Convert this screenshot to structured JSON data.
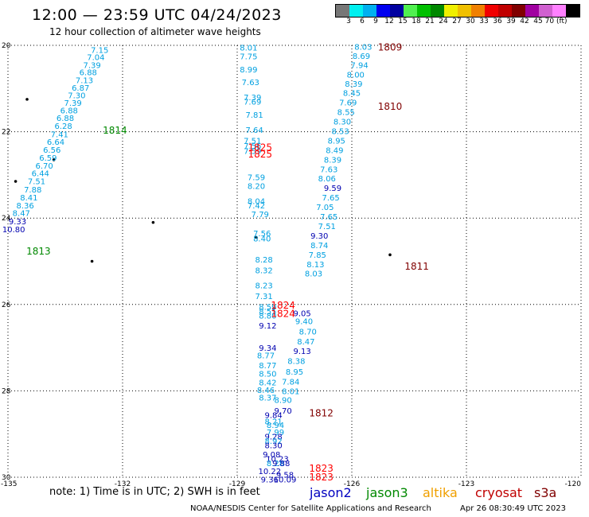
{
  "header": {
    "title": "12:00 — 23:59 UTC 04/24/2023",
    "subtitle": "12 hour collection of altimeter wave heights"
  },
  "colorbar": {
    "colors": [
      "#777777",
      "#00f0f0",
      "#00b0f0",
      "#0000f0",
      "#0000a0",
      "#50f050",
      "#00c000",
      "#008800",
      "#f0f000",
      "#f0c000",
      "#f08000",
      "#f00000",
      "#c00000",
      "#800000",
      "#a000a0",
      "#d060d0",
      "#ff80ff",
      "#000000"
    ],
    "labels": [
      "3",
      "6",
      "9",
      "12",
      "15",
      "18",
      "21",
      "24",
      "27",
      "30",
      "33",
      "36",
      "39",
      "42",
      "45",
      "70 (ft)"
    ]
  },
  "axes": {
    "x_ticks": [
      "-135",
      "-132",
      "-129",
      "-126",
      "-123",
      "-120"
    ],
    "y_ticks": [
      "20",
      "22",
      "24",
      "26",
      "28",
      "30"
    ]
  },
  "map": {
    "islands": [
      {
        "lon": -134.5,
        "lat": 21.25
      },
      {
        "lon": -134.8,
        "lat": 23.15
      },
      {
        "lon": -131.2,
        "lat": 24.1
      },
      {
        "lon": -132.8,
        "lat": 25.0
      },
      {
        "lon": -128.5,
        "lat": 24.45
      },
      {
        "lon": -125.0,
        "lat": 24.85
      },
      {
        "lon": -133.8,
        "lat": 22.65
      }
    ],
    "passes": [
      {
        "label": "1814",
        "color": "#008800",
        "lon": -132.2,
        "lat": 21.95
      },
      {
        "label": "1813",
        "color": "#008800",
        "lon": -134.2,
        "lat": 24.75
      },
      {
        "label": "1809",
        "color": "#800000",
        "lon": -125.0,
        "lat": 20.03
      },
      {
        "label": "1810",
        "color": "#800000",
        "lon": -125.0,
        "lat": 21.4
      },
      {
        "label": "1811",
        "color": "#800000",
        "lon": -124.3,
        "lat": 25.1
      },
      {
        "label": "1812",
        "color": "#800000",
        "lon": -126.8,
        "lat": 28.5
      },
      {
        "label": "1825",
        "color": "#ff0000",
        "lon": -128.4,
        "lat": 22.35
      },
      {
        "label": "1825",
        "color": "#ff0000",
        "lon": -128.4,
        "lat": 22.5
      },
      {
        "label": "1824",
        "color": "#ff0000",
        "lon": -127.8,
        "lat": 26.0
      },
      {
        "label": "1824",
        "color": "#ff0000",
        "lon": -127.8,
        "lat": 26.2
      },
      {
        "label": "1823",
        "color": "#ff0000",
        "lon": -126.8,
        "lat": 29.78
      },
      {
        "label": "1823",
        "color": "#ff0000",
        "lon": -126.8,
        "lat": 29.98
      }
    ],
    "tracks": [
      {
        "name": "track-west",
        "points": [
          {
            "lon": -132.6,
            "lat": 20.1,
            "v": "7.15",
            "c": "#00a0e0"
          },
          {
            "lon": -132.7,
            "lat": 20.27,
            "v": "7.04",
            "c": "#00a0e0"
          },
          {
            "lon": -132.8,
            "lat": 20.45,
            "v": "7.39",
            "c": "#00a0e0"
          },
          {
            "lon": -132.9,
            "lat": 20.62,
            "v": "6.88",
            "c": "#00a0e0"
          },
          {
            "lon": -133.0,
            "lat": 20.8,
            "v": "7.13",
            "c": "#00a0e0"
          },
          {
            "lon": -133.1,
            "lat": 20.98,
            "v": "6.87",
            "c": "#00a0e0"
          },
          {
            "lon": -133.2,
            "lat": 21.15,
            "v": "7.30",
            "c": "#00a0e0"
          },
          {
            "lon": -133.3,
            "lat": 21.33,
            "v": "7.39",
            "c": "#00a0e0"
          },
          {
            "lon": -133.4,
            "lat": 21.5,
            "v": "6.88",
            "c": "#00a0e0"
          },
          {
            "lon": -133.5,
            "lat": 21.68,
            "v": "6.88",
            "c": "#00a0e0"
          },
          {
            "lon": -133.55,
            "lat": 21.86,
            "v": "6.28",
            "c": "#00a0e0"
          },
          {
            "lon": -133.65,
            "lat": 22.05,
            "v": "7.41",
            "c": "#00a0e0"
          },
          {
            "lon": -133.75,
            "lat": 22.23,
            "v": "6.64",
            "c": "#00a0e0"
          },
          {
            "lon": -133.85,
            "lat": 22.41,
            "v": "6.56",
            "c": "#00a0e0"
          },
          {
            "lon": -133.95,
            "lat": 22.6,
            "v": "6.59",
            "c": "#00a0e0"
          },
          {
            "lon": -134.05,
            "lat": 22.78,
            "v": "6.70",
            "c": "#00a0e0"
          },
          {
            "lon": -134.15,
            "lat": 22.96,
            "v": "6.44",
            "c": "#00a0e0"
          },
          {
            "lon": -134.25,
            "lat": 23.14,
            "v": "7.51",
            "c": "#00a0e0"
          },
          {
            "lon": -134.35,
            "lat": 23.33,
            "v": "7.88",
            "c": "#00a0e0"
          },
          {
            "lon": -134.45,
            "lat": 23.52,
            "v": "8.41",
            "c": "#00a0e0"
          },
          {
            "lon": -134.55,
            "lat": 23.7,
            "v": "8.36",
            "c": "#00a0e0"
          },
          {
            "lon": -134.65,
            "lat": 23.88,
            "v": "8.47",
            "c": "#00a0e0"
          },
          {
            "lon": -134.75,
            "lat": 24.07,
            "v": "9.33",
            "c": "#0000b0"
          },
          {
            "lon": -134.85,
            "lat": 24.25,
            "v": "10.80",
            "c": "#0000b0"
          }
        ]
      },
      {
        "name": "track-center",
        "points": [
          {
            "lon": -128.7,
            "lat": 20.05,
            "v": "8.01",
            "c": "#00a0e0"
          },
          {
            "lon": -128.7,
            "lat": 20.25,
            "v": "7.75",
            "c": "#00a0e0"
          },
          {
            "lon": -128.7,
            "lat": 20.55,
            "v": "8.99",
            "c": "#00a0e0"
          },
          {
            "lon": -128.65,
            "lat": 20.85,
            "v": "7.63",
            "c": "#00a0e0"
          },
          {
            "lon": -128.6,
            "lat": 21.2,
            "v": "7.39",
            "c": "#00a0e0"
          },
          {
            "lon": -128.6,
            "lat": 21.3,
            "v": "7.69",
            "c": "#00a0e0"
          },
          {
            "lon": -128.55,
            "lat": 21.6,
            "v": "7.81",
            "c": "#00a0e0"
          },
          {
            "lon": -128.55,
            "lat": 21.95,
            "v": "7.64",
            "c": "#00a0e0"
          },
          {
            "lon": -128.6,
            "lat": 22.2,
            "v": "7.51",
            "c": "#00a0e0"
          },
          {
            "lon": -128.6,
            "lat": 22.32,
            "v": "7.56",
            "c": "#00a0e0"
          },
          {
            "lon": -128.6,
            "lat": 22.44,
            "v": "7.59",
            "c": "#00a0e0"
          },
          {
            "lon": -128.5,
            "lat": 23.05,
            "v": "7.59",
            "c": "#00a0e0"
          },
          {
            "lon": -128.5,
            "lat": 23.25,
            "v": "8.20",
            "c": "#00a0e0"
          },
          {
            "lon": -128.5,
            "lat": 23.6,
            "v": "8.04",
            "c": "#00a0e0"
          },
          {
            "lon": -128.5,
            "lat": 23.7,
            "v": "7.42",
            "c": "#00a0e0"
          },
          {
            "lon": -128.4,
            "lat": 23.9,
            "v": "7.79",
            "c": "#00a0e0"
          },
          {
            "lon": -128.35,
            "lat": 24.35,
            "v": "7.56",
            "c": "#00a0e0"
          },
          {
            "lon": -128.35,
            "lat": 24.47,
            "v": "8.40",
            "c": "#00a0e0"
          },
          {
            "lon": -128.3,
            "lat": 24.95,
            "v": "8.28",
            "c": "#00a0e0"
          },
          {
            "lon": -128.3,
            "lat": 25.2,
            "v": "8.32",
            "c": "#00a0e0"
          },
          {
            "lon": -128.3,
            "lat": 25.55,
            "v": "8.23",
            "c": "#00a0e0"
          },
          {
            "lon": -128.3,
            "lat": 25.8,
            "v": "7.31",
            "c": "#00a0e0"
          },
          {
            "lon": -128.2,
            "lat": 26.05,
            "v": "8.59",
            "c": "#00a0e0"
          },
          {
            "lon": -128.2,
            "lat": 26.15,
            "v": "8.55",
            "c": "#00a0e0"
          },
          {
            "lon": -128.2,
            "lat": 26.25,
            "v": "8.80",
            "c": "#00a0e0"
          },
          {
            "lon": -128.2,
            "lat": 26.48,
            "v": "9.12",
            "c": "#0000b0"
          },
          {
            "lon": -127.3,
            "lat": 26.2,
            "v": "9.05",
            "c": "#0000b0"
          },
          {
            "lon": -127.25,
            "lat": 26.38,
            "v": "9.40",
            "c": "#00a0e0"
          },
          {
            "lon": -127.15,
            "lat": 26.62,
            "v": "8.70",
            "c": "#00a0e0"
          },
          {
            "lon": -127.2,
            "lat": 26.85,
            "v": "8.47",
            "c": "#00a0e0"
          },
          {
            "lon": -127.3,
            "lat": 27.07,
            "v": "9.13",
            "c": "#0000b0"
          },
          {
            "lon": -127.45,
            "lat": 27.3,
            "v": "8.38",
            "c": "#00a0e0"
          },
          {
            "lon": -127.5,
            "lat": 27.55,
            "v": "8.95",
            "c": "#00a0e0"
          },
          {
            "lon": -127.6,
            "lat": 27.78,
            "v": "7.84",
            "c": "#00a0e0"
          },
          {
            "lon": -127.6,
            "lat": 28.0,
            "v": "8.01",
            "c": "#00a0e0"
          },
          {
            "lon": -127.8,
            "lat": 28.2,
            "v": "8.90",
            "c": "#00a0e0"
          },
          {
            "lon": -128.2,
            "lat": 27.0,
            "v": "9.34",
            "c": "#0000b0"
          },
          {
            "lon": -128.25,
            "lat": 27.17,
            "v": "8.77",
            "c": "#00a0e0"
          },
          {
            "lon": -128.2,
            "lat": 27.4,
            "v": "8.77",
            "c": "#00a0e0"
          },
          {
            "lon": -128.2,
            "lat": 27.6,
            "v": "8.50",
            "c": "#00a0e0"
          },
          {
            "lon": -128.2,
            "lat": 27.8,
            "v": "8.42",
            "c": "#00a0e0"
          },
          {
            "lon": -128.25,
            "lat": 27.97,
            "v": "8.46",
            "c": "#00a0e0"
          },
          {
            "lon": -128.2,
            "lat": 28.15,
            "v": "8.37",
            "c": "#00a0e0"
          },
          {
            "lon": -127.8,
            "lat": 28.45,
            "v": "9.70",
            "c": "#0000b0"
          },
          {
            "lon": -128.05,
            "lat": 28.55,
            "v": "9.84",
            "c": "#0000b0"
          },
          {
            "lon": -128.05,
            "lat": 28.7,
            "v": "8.21",
            "c": "#00a0e0"
          },
          {
            "lon": -128.0,
            "lat": 28.78,
            "v": "8.94",
            "c": "#00a0e0"
          },
          {
            "lon": -128.0,
            "lat": 28.95,
            "v": "7.99",
            "c": "#00a0e0"
          },
          {
            "lon": -128.05,
            "lat": 29.05,
            "v": "9.28",
            "c": "#0000b0"
          },
          {
            "lon": -128.05,
            "lat": 29.15,
            "v": "8.92",
            "c": "#00a0e0"
          },
          {
            "lon": -128.05,
            "lat": 29.25,
            "v": "8.30",
            "c": "#0000b0"
          },
          {
            "lon": -128.1,
            "lat": 29.47,
            "v": "9.08",
            "c": "#0000b0"
          },
          {
            "lon": -127.95,
            "lat": 29.57,
            "v": "10.23",
            "c": "#0000b0"
          },
          {
            "lon": -128.0,
            "lat": 29.67,
            "v": "8.28",
            "c": "#00a0e0"
          },
          {
            "lon": -127.85,
            "lat": 29.67,
            "v": "9.88",
            "c": "#0000b0"
          },
          {
            "lon": -128.15,
            "lat": 29.85,
            "v": "10.22",
            "c": "#0000b0"
          },
          {
            "lon": -127.75,
            "lat": 29.94,
            "v": "9.58",
            "c": "#0000b0"
          },
          {
            "lon": -128.15,
            "lat": 30.05,
            "v": "9.36",
            "c": "#0000b0"
          },
          {
            "lon": -127.75,
            "lat": 30.05,
            "v": "10.09",
            "c": "#0000b0"
          }
        ]
      },
      {
        "name": "track-east",
        "points": [
          {
            "lon": -125.7,
            "lat": 20.03,
            "v": "8.03",
            "c": "#00a0e0"
          },
          {
            "lon": -125.75,
            "lat": 20.24,
            "v": "8.69",
            "c": "#00a0e0"
          },
          {
            "lon": -125.8,
            "lat": 20.45,
            "v": "7.94",
            "c": "#00a0e0"
          },
          {
            "lon": -125.9,
            "lat": 20.67,
            "v": "8.00",
            "c": "#00a0e0"
          },
          {
            "lon": -125.95,
            "lat": 20.88,
            "v": "8.39",
            "c": "#00a0e0"
          },
          {
            "lon": -126.0,
            "lat": 21.1,
            "v": "8.45",
            "c": "#00a0e0"
          },
          {
            "lon": -126.1,
            "lat": 21.32,
            "v": "7.69",
            "c": "#00a0e0"
          },
          {
            "lon": -126.15,
            "lat": 21.54,
            "v": "8.55",
            "c": "#00a0e0"
          },
          {
            "lon": -126.25,
            "lat": 21.76,
            "v": "8.30",
            "c": "#00a0e0"
          },
          {
            "lon": -126.3,
            "lat": 21.98,
            "v": "8.53",
            "c": "#00a0e0"
          },
          {
            "lon": -126.4,
            "lat": 22.2,
            "v": "8.95",
            "c": "#00a0e0"
          },
          {
            "lon": -126.45,
            "lat": 22.42,
            "v": "8.49",
            "c": "#00a0e0"
          },
          {
            "lon": -126.5,
            "lat": 22.64,
            "v": "8.39",
            "c": "#00a0e0"
          },
          {
            "lon": -126.6,
            "lat": 22.86,
            "v": "7.63",
            "c": "#00a0e0"
          },
          {
            "lon": -126.65,
            "lat": 23.08,
            "v": "8.06",
            "c": "#00a0e0"
          },
          {
            "lon": -126.5,
            "lat": 23.3,
            "v": "9.59",
            "c": "#0000b0"
          },
          {
            "lon": -126.55,
            "lat": 23.52,
            "v": "7.65",
            "c": "#00a0e0"
          },
          {
            "lon": -126.7,
            "lat": 23.74,
            "v": "7.05",
            "c": "#00a0e0"
          },
          {
            "lon": -126.6,
            "lat": 23.96,
            "v": "7.65",
            "c": "#00a0e0"
          },
          {
            "lon": -126.65,
            "lat": 24.18,
            "v": "7.51",
            "c": "#00a0e0"
          },
          {
            "lon": -126.85,
            "lat": 24.4,
            "v": "9.30",
            "c": "#0000b0"
          },
          {
            "lon": -126.85,
            "lat": 24.62,
            "v": "8.74",
            "c": "#00a0e0"
          },
          {
            "lon": -126.9,
            "lat": 24.84,
            "v": "7.85",
            "c": "#00a0e0"
          },
          {
            "lon": -126.95,
            "lat": 25.06,
            "v": "8.13",
            "c": "#00a0e0"
          },
          {
            "lon": -127.0,
            "lat": 25.28,
            "v": "8.03",
            "c": "#00a0e0"
          }
        ]
      }
    ]
  },
  "footer": {
    "note": "note:  1) Time is in UTC;  2) SWH is in feet",
    "credit": "NOAA/NESDIS Center for Satellite Applications and Research",
    "date": "Apr 26 08:30:49 UTC 2023",
    "legend": [
      {
        "label": "jason2",
        "color": "#0000c0"
      },
      {
        "label": "jason3",
        "color": "#008800"
      },
      {
        "label": "altika",
        "color": "#f0a000"
      },
      {
        "label": "cryosat",
        "color": "#c00000"
      },
      {
        "label": "s3a",
        "color": "#800000"
      }
    ]
  }
}
